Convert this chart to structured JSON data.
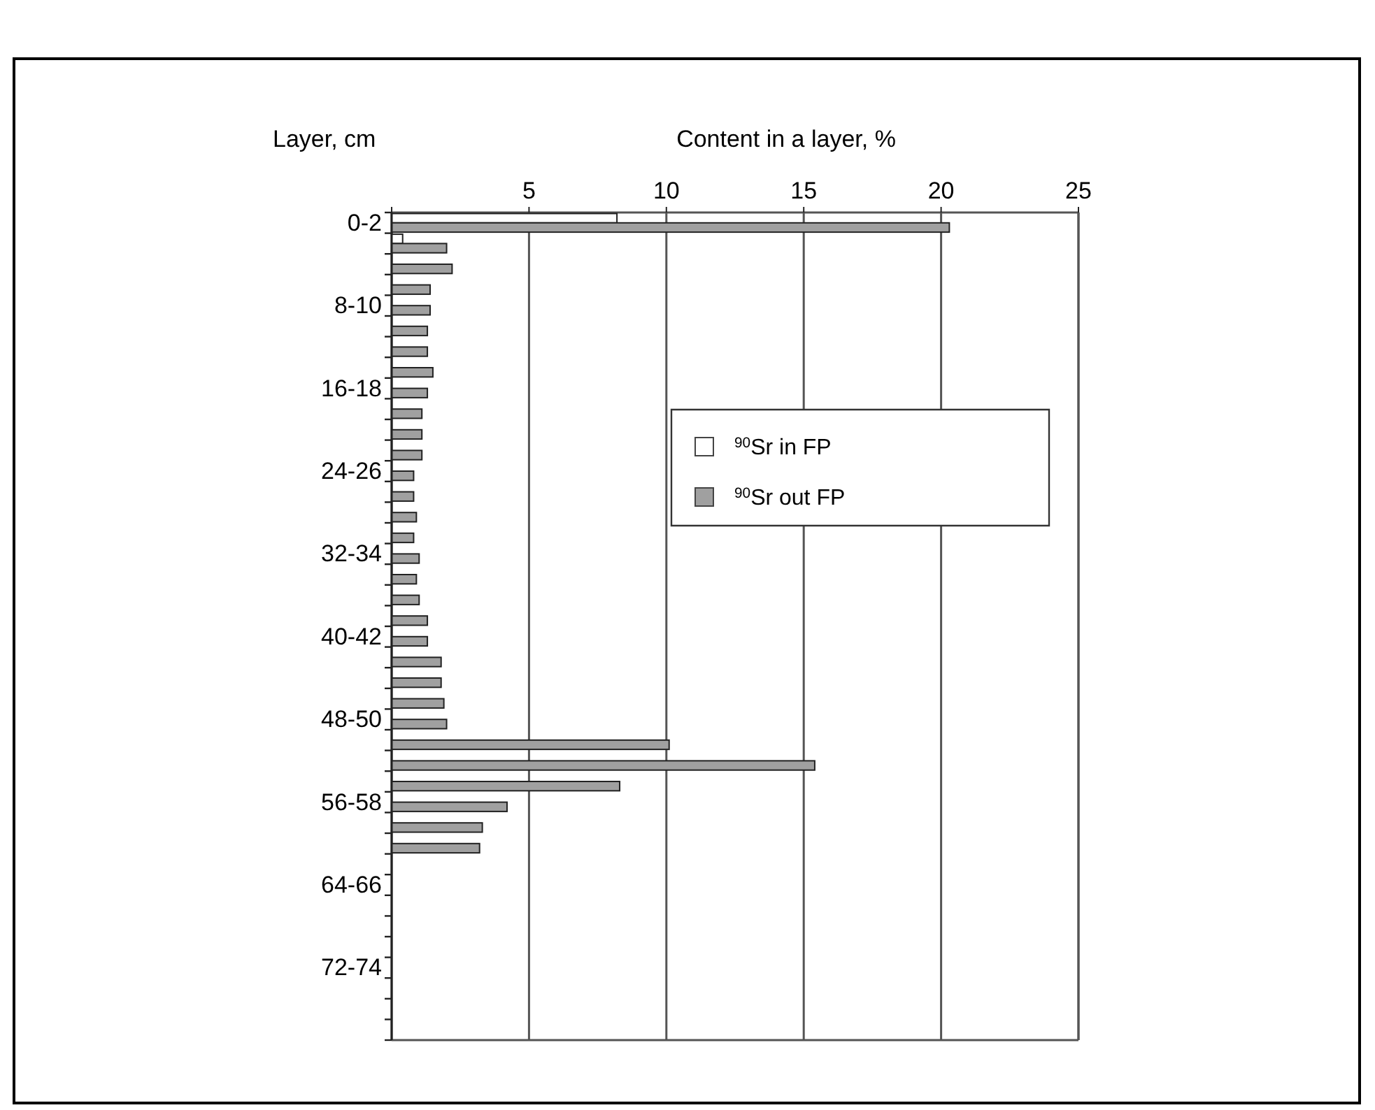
{
  "chart_data": {
    "type": "bar",
    "orientation": "horizontal",
    "xlabel": "Content in a layer, %",
    "ylabel": "Layer, cm",
    "categories": [
      "0-2",
      null,
      null,
      null,
      "8-10",
      null,
      null,
      null,
      "16-18",
      null,
      null,
      null,
      "24-26",
      null,
      null,
      null,
      "32-34",
      null,
      null,
      null,
      "40-42",
      null,
      null,
      null,
      "48-50",
      null,
      null,
      null,
      "56-58",
      null,
      null,
      null,
      "64-66",
      null,
      null,
      null,
      "72-74",
      null,
      null,
      null
    ],
    "series": [
      {
        "name": "$^{90}$Sr in FP",
        "color": "#ffffff",
        "values": [
          8.2,
          0.4,
          null,
          null,
          null,
          null,
          null,
          null,
          null,
          null,
          null,
          null,
          null,
          null,
          null,
          null,
          null,
          null,
          null,
          null,
          null,
          null,
          null,
          null,
          null,
          null,
          null,
          null,
          null,
          null,
          null,
          null,
          null,
          null,
          null,
          null,
          null,
          null,
          null,
          null
        ]
      },
      {
        "name": "$^{90}$Sr out FP",
        "color": "#a0a0a0",
        "values": [
          20.3,
          2.0,
          2.2,
          1.4,
          1.4,
          1.3,
          1.3,
          1.5,
          1.3,
          1.1,
          1.1,
          1.1,
          0.8,
          0.8,
          0.9,
          0.8,
          1.0,
          0.9,
          1.0,
          1.3,
          1.3,
          1.8,
          1.8,
          1.9,
          2.0,
          10.1,
          15.4,
          8.3,
          4.2,
          3.3,
          3.2,
          null,
          null,
          null,
          null,
          null,
          null,
          null,
          null,
          null
        ]
      }
    ],
    "xlim": [
      0,
      25
    ],
    "xticks": [
      {
        "value": 0,
        "label": null
      },
      5,
      10,
      15,
      20,
      25
    ],
    "grid": "x",
    "legend": "right"
  }
}
